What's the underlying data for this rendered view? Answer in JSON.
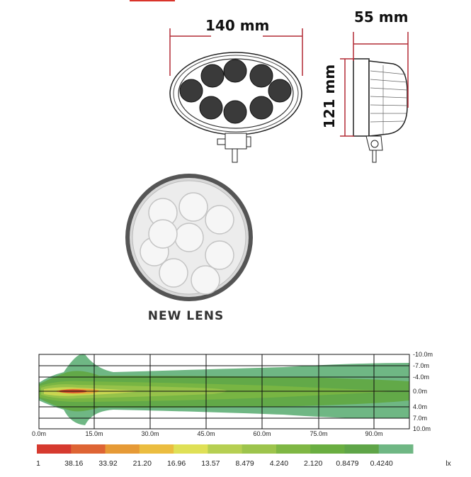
{
  "dimensions": {
    "width": "140 mm",
    "depth": "55 mm",
    "height": "121 mm"
  },
  "lens": {
    "caption": "NEW LENS"
  },
  "beam_pattern": {
    "x_ticks": [
      "0.0m",
      "15.0m",
      "30.0m",
      "45.0m",
      "60.0m",
      "75.0m",
      "90.0m"
    ],
    "y_ticks": [
      "-10.0m",
      "-7.0m",
      "-4.0m",
      "0.0m",
      "4.0m",
      "7.0m",
      "10.0m"
    ],
    "legend_labels": [
      "1",
      "38.16",
      "33.92",
      "21.20",
      "16.96",
      "13.57",
      "8.479",
      "4.240",
      "2.120",
      "0.8479",
      "0.4240"
    ],
    "legend_colors": [
      "#d63a2f",
      "#de6434",
      "#e69a36",
      "#ebbd40",
      "#dfe056",
      "#b6cf52",
      "#9dc44c",
      "#7fb744",
      "#6aae41",
      "#5fa548",
      "#6fb784"
    ],
    "unit": "lx"
  },
  "colors": {
    "dimension_line": "#b22b35",
    "accent_bar": "#d9332a"
  }
}
